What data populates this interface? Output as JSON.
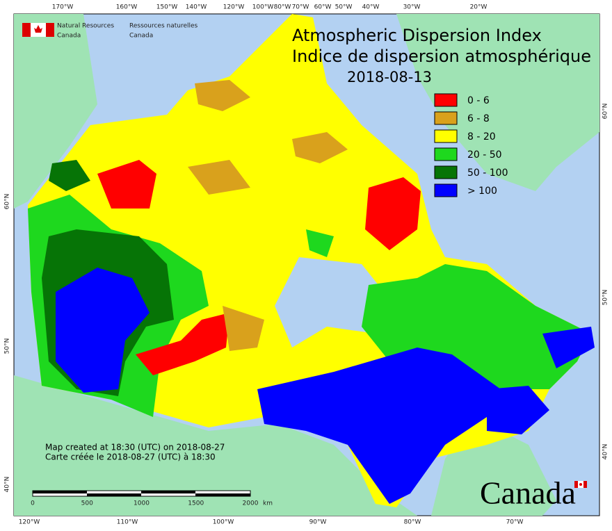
{
  "header": {
    "org_en": [
      "Natural Resources",
      "Canada"
    ],
    "org_fr": [
      "Ressources naturelles",
      "Canada"
    ]
  },
  "title": [
    "Atmospheric Dispersion Index",
    "Indice de dispersion atmosphérique"
  ],
  "date": "2018-08-13",
  "legend": [
    {
      "label": "0 - 6",
      "color": "#ff0000"
    },
    {
      "label": "6 - 8",
      "color": "#d9a11c"
    },
    {
      "label": "8 - 20",
      "color": "#ffff00"
    },
    {
      "label": "20 - 50",
      "color": "#1ed81e"
    },
    {
      "label": "50 - 100",
      "color": "#067406"
    },
    {
      "label": "> 100",
      "color": "#0000ff"
    }
  ],
  "graticule": {
    "top": [
      "170°W",
      "160°W",
      "150°W",
      "140°W",
      "120°W",
      "100°W",
      "80°W",
      "70°W",
      "60°W",
      "50°W",
      "40°W",
      "30°W",
      "20°W"
    ],
    "bottom": [
      "120°W",
      "110°W",
      "100°W",
      "90°W",
      "80°W",
      "70°W"
    ],
    "left": [
      "60°N",
      "50°N",
      "40°N"
    ],
    "right": [
      "60°N",
      "50°N",
      "40°N"
    ]
  },
  "credits": [
    "Map created at 18:30 (UTC) on 2018-08-27",
    "Carte créée le 2018-08-27 (UTC) à 18:30"
  ],
  "scale_bar": {
    "labels": [
      "0",
      "500",
      "1000",
      "1500",
      "2000"
    ],
    "unit": "km"
  },
  "wordmark": "Canada"
}
